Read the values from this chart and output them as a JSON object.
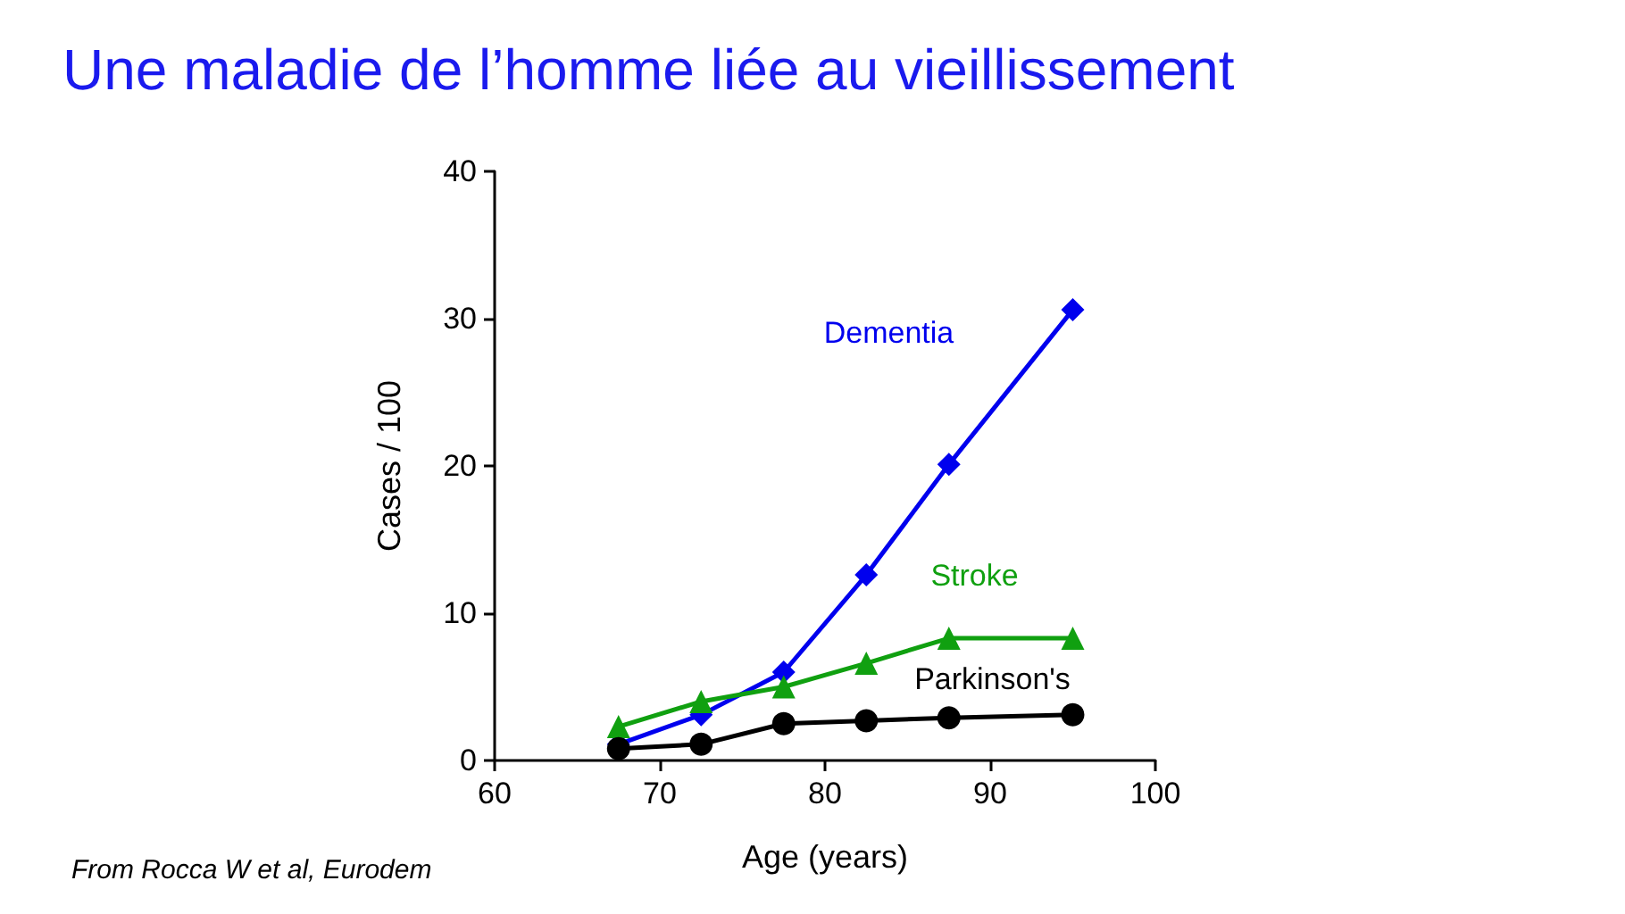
{
  "chart_data": {
    "type": "line",
    "title": "Une maladie de l’homme liée au vieillissement",
    "xlabel": "Age (years)",
    "ylabel": "Cases / 100",
    "annotations": [
      "From Rocca W et al, Eurodem"
    ],
    "x": [
      67.5,
      72.5,
      77.5,
      82.5,
      87.5,
      95
    ],
    "series": [
      {
        "name": "Dementia",
        "color": "#0000ee",
        "marker": "diamond",
        "values": [
          1.1,
          3.1,
          6.0,
          12.6,
          20.1,
          30.6
        ]
      },
      {
        "name": "Stroke",
        "color": "#10a010",
        "marker": "triangle",
        "values": [
          2.3,
          4.0,
          5.0,
          6.6,
          8.3,
          8.3
        ]
      },
      {
        "name": "Parkinson's",
        "color": "#000000",
        "marker": "circle",
        "values": [
          0.8,
          1.1,
          2.5,
          2.7,
          2.9,
          3.1
        ]
      }
    ],
    "xlim": [
      60,
      100
    ],
    "xticks": [
      60,
      70,
      80,
      90,
      100
    ],
    "ylim": [
      0,
      40
    ],
    "yticks": [
      0,
      10,
      20,
      30,
      40
    ],
    "grid": false,
    "legend": false,
    "line_style": "solid"
  }
}
